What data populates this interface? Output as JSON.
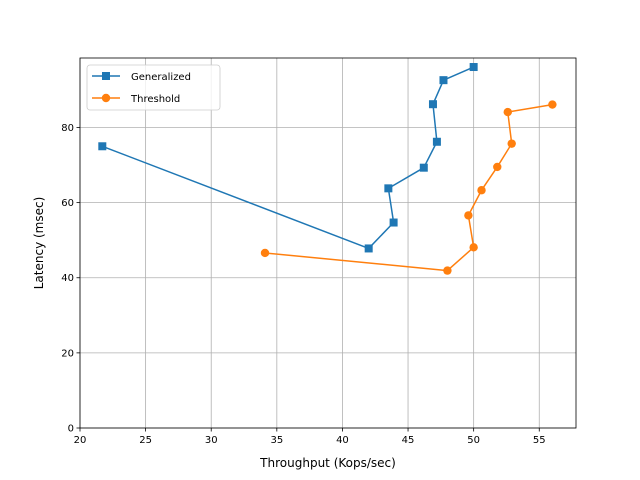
{
  "chart_data": {
    "type": "line",
    "title": "",
    "xlabel": "Throughput (Kops/sec)",
    "ylabel": "Latency (msec)",
    "xlim": [
      20,
      57.8
    ],
    "ylim": [
      0,
      98.5
    ],
    "xticks": [
      20,
      25,
      30,
      35,
      40,
      45,
      50,
      55
    ],
    "yticks": [
      0,
      20,
      40,
      60,
      80
    ],
    "grid": true,
    "legend_position": "top-left",
    "series": [
      {
        "name": "Generalized",
        "color": "#1f77b4",
        "marker": "square",
        "x": [
          21.7,
          42.0,
          43.9,
          43.5,
          46.2,
          47.2,
          46.9,
          47.7,
          50.0
        ],
        "y": [
          75.0,
          47.8,
          54.7,
          63.8,
          69.3,
          76.2,
          86.2,
          92.6,
          96.1
        ]
      },
      {
        "name": "Threshold",
        "color": "#ff7f0e",
        "marker": "circle",
        "x": [
          34.1,
          48.0,
          50.0,
          49.6,
          50.6,
          51.8,
          52.9,
          52.6,
          56.0
        ],
        "y": [
          46.6,
          41.9,
          48.1,
          56.6,
          63.3,
          69.5,
          75.7,
          84.1,
          86.1
        ]
      }
    ]
  }
}
